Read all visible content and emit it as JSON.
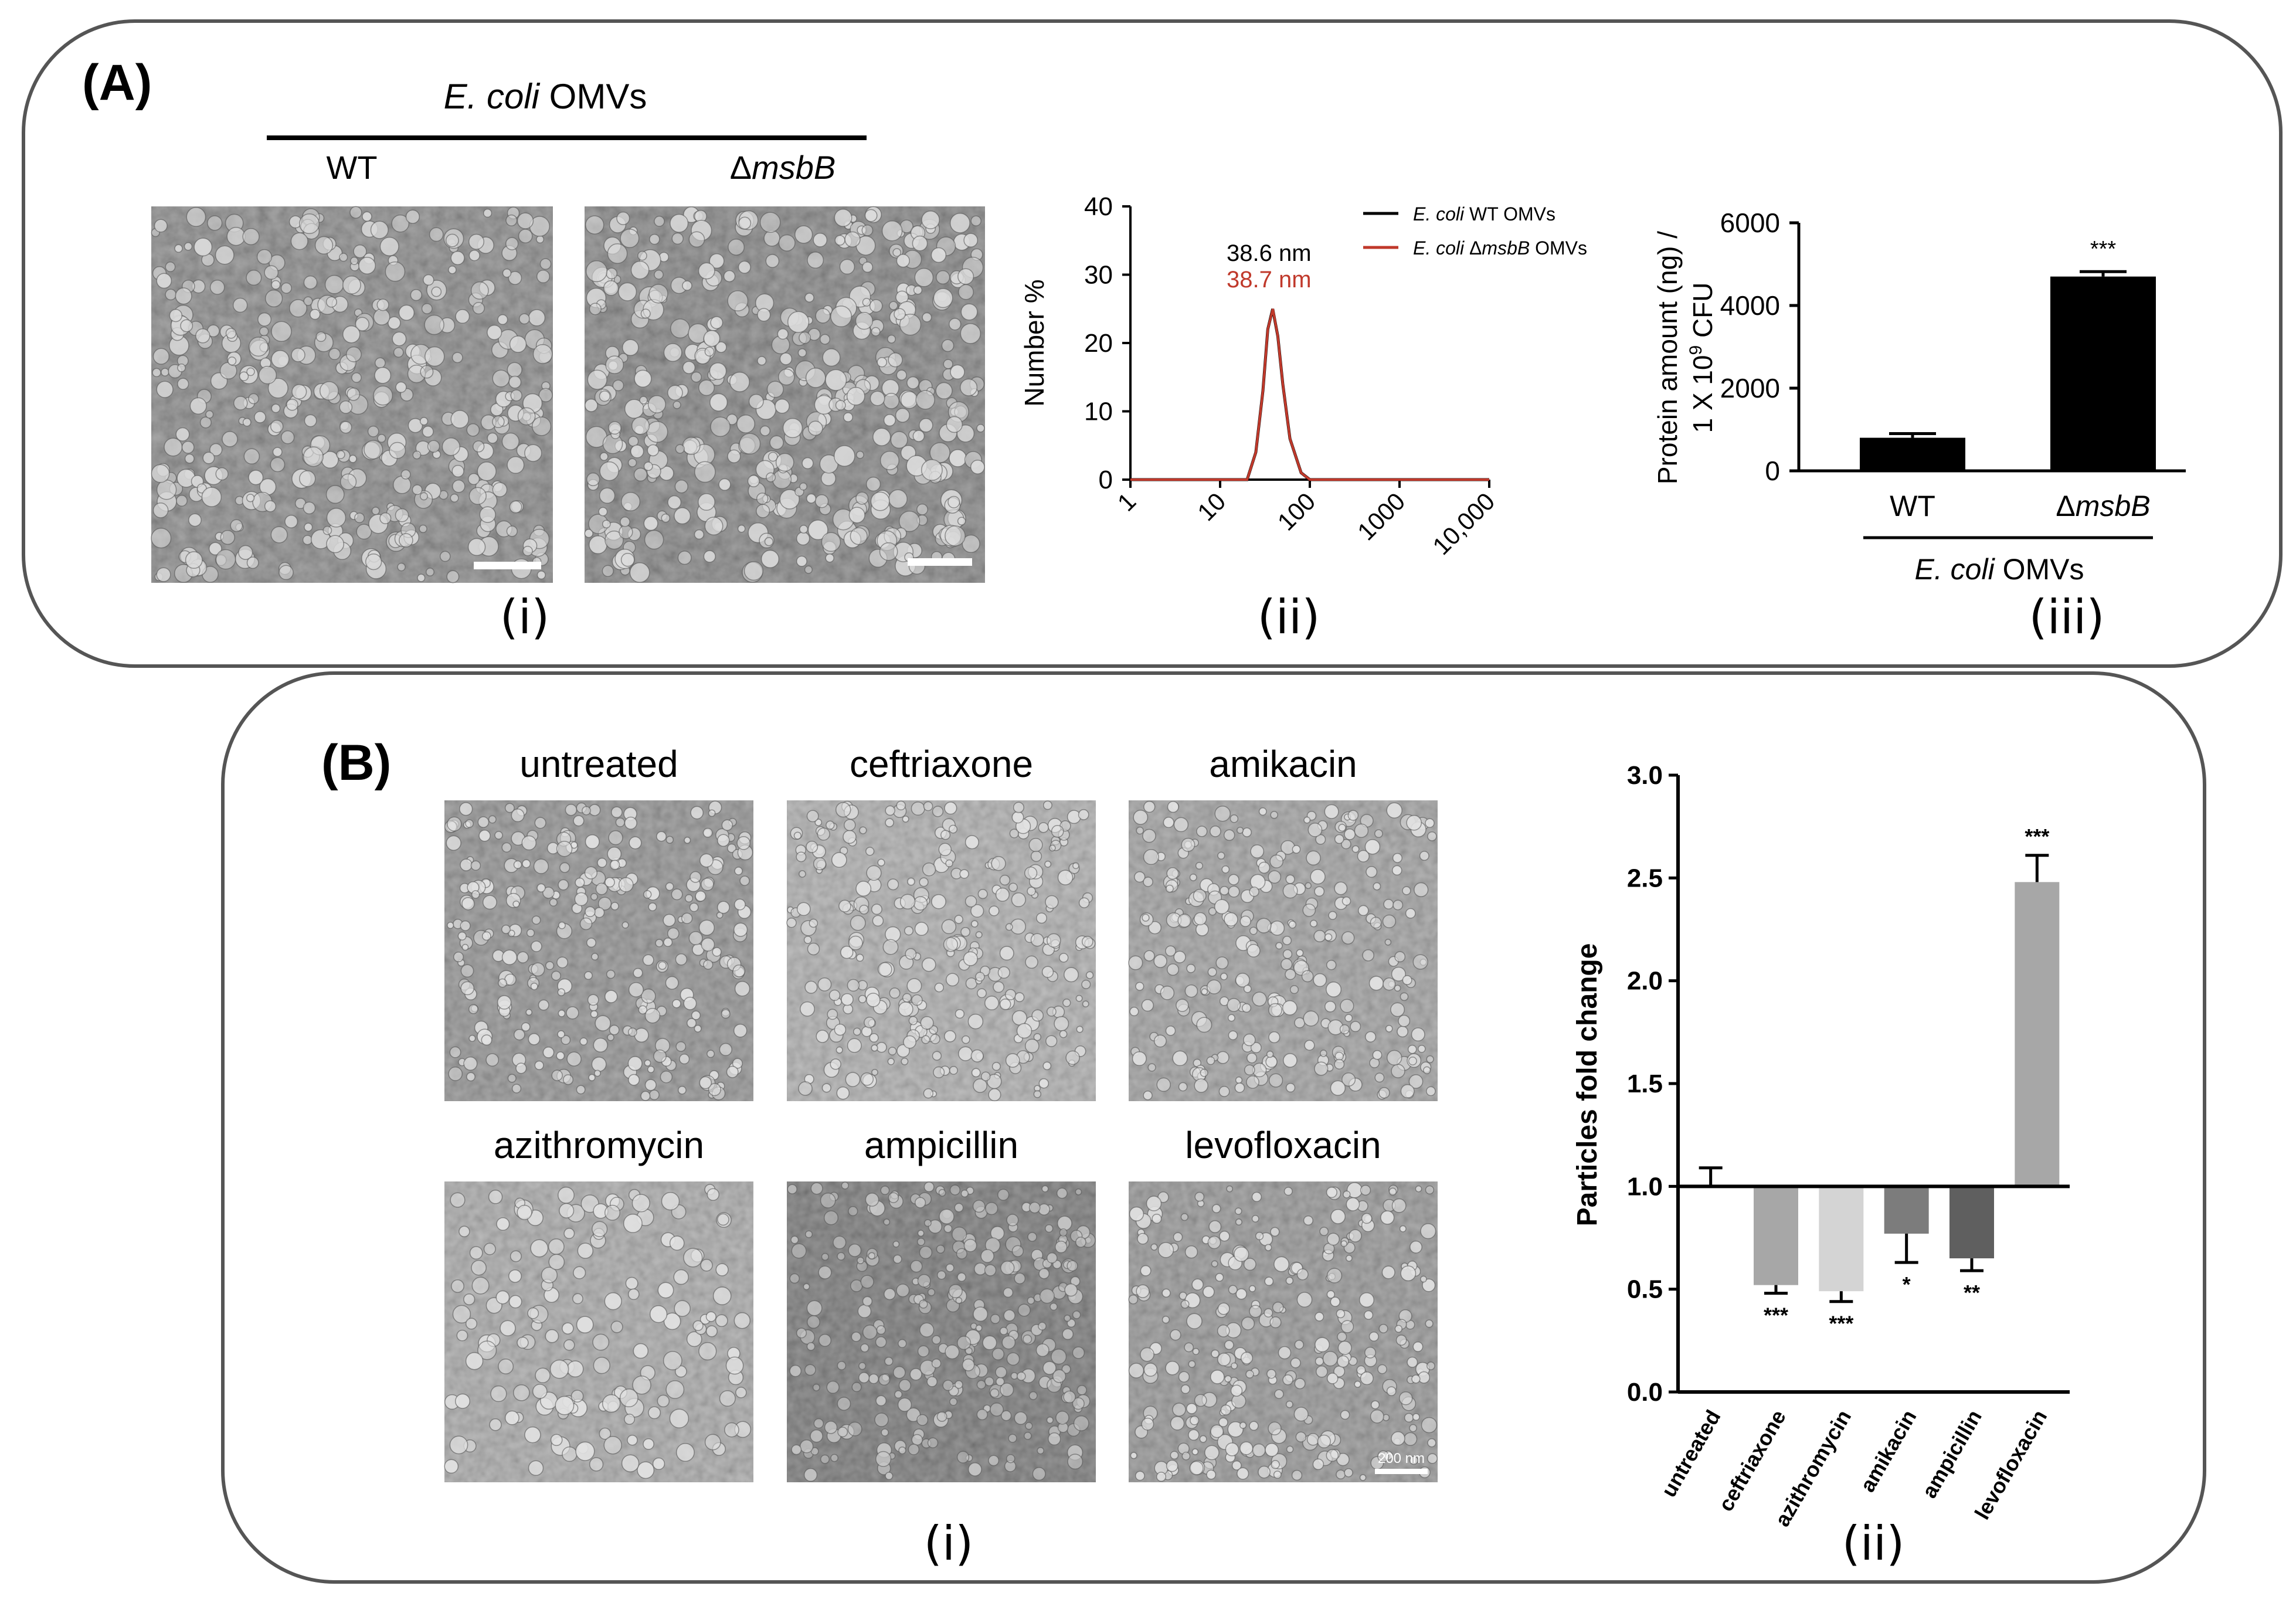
{
  "panel_a": {
    "label": "(A)",
    "group_title_italic": "E. coli",
    "group_title_rest": " OMVs",
    "col_wt": "WT",
    "col_mut_prefix": "Δ",
    "col_mut_italic": "msbB",
    "sub_i": "(i)",
    "sub_ii": "(ii)",
    "sub_iii": "(iii)"
  },
  "panel_b": {
    "label": "(B)",
    "sub_i": "(i)",
    "sub_ii": "(ii)",
    "scale_bar_label": "200 nm",
    "images": [
      "untreated",
      "ceftriaxone",
      "amikacin",
      "azithromycin",
      "ampicillin",
      "levofloxacin"
    ]
  },
  "chart_data": [
    {
      "type": "line",
      "x_scale": "log",
      "xlim": [
        1,
        10000
      ],
      "ylim": [
        0,
        40
      ],
      "xticks": [
        1,
        10,
        100,
        1000,
        10000
      ],
      "xtick_labels": [
        "1",
        "10",
        "100",
        "1000",
        "10,000"
      ],
      "yticks": [
        0,
        10,
        20,
        30,
        40
      ],
      "ylabel": "Number %",
      "xlabel": "",
      "legend_position": "top-right",
      "series": [
        {
          "name_italic": "E. coli",
          "name_rest": " WT OMVs",
          "color": "#000000",
          "peak_label": "38.6 nm",
          "x": [
            1,
            10,
            20,
            25,
            30,
            34,
            38.6,
            44,
            50,
            60,
            80,
            100,
            10000
          ],
          "y": [
            0,
            0,
            0,
            4,
            13,
            22,
            25,
            21,
            14,
            6,
            1,
            0,
            0
          ]
        },
        {
          "name_italic": "E. coli",
          "name_rest_prefix": " Δ",
          "name_italic2": "msbB",
          "name_rest": " OMVs",
          "color": "#c0392b",
          "peak_label": "38.7 nm",
          "x": [
            1,
            10,
            20,
            25,
            30,
            34,
            38.7,
            44,
            50,
            60,
            80,
            100,
            10000
          ],
          "y": [
            0,
            0,
            0,
            4,
            13,
            22,
            25,
            21,
            14,
            6,
            1,
            0,
            0
          ]
        }
      ]
    },
    {
      "type": "bar",
      "categories": [
        "WT",
        "msbB"
      ],
      "category_prefix": [
        "",
        "Δ"
      ],
      "values": [
        800,
        4700
      ],
      "errors": [
        100,
        120
      ],
      "significance": [
        "",
        "***"
      ],
      "ylim": [
        0,
        6000
      ],
      "yticks": [
        0,
        2000,
        4000,
        6000
      ],
      "ylabel_line1": "Protein amount (ng) /",
      "ylabel_line2_pre": "1 X 10",
      "ylabel_line2_sup": "9",
      "ylabel_line2_post": " CFU",
      "xgroup_italic": "E. coli",
      "xgroup_rest": " OMVs",
      "bar_color": "#000000"
    },
    {
      "type": "bar",
      "categories": [
        "untreated",
        "ceftriaxone",
        "azithromycin",
        "amikacin",
        "ampicillin",
        "levofloxacin"
      ],
      "values": [
        1.0,
        0.52,
        0.49,
        0.77,
        0.65,
        2.48
      ],
      "errors": [
        0.09,
        0.04,
        0.05,
        0.14,
        0.06,
        0.13
      ],
      "significance": [
        "",
        "***",
        "***",
        "*",
        "**",
        "***"
      ],
      "baseline": 1.0,
      "ylim": [
        0.0,
        3.0
      ],
      "yticks": [
        0.0,
        0.5,
        1.0,
        1.5,
        2.0,
        2.5,
        3.0
      ],
      "ytick_labels": [
        "0.0",
        "0.5",
        "1.0",
        "1.5",
        "2.0",
        "2.5",
        "3.0"
      ],
      "ylabel": "Particles fold change",
      "colors": [
        "#ffffff",
        "#a7a7a7",
        "#d4d4d4",
        "#7c7c7c",
        "#5f5f5f",
        "#a7a7a7"
      ]
    }
  ]
}
